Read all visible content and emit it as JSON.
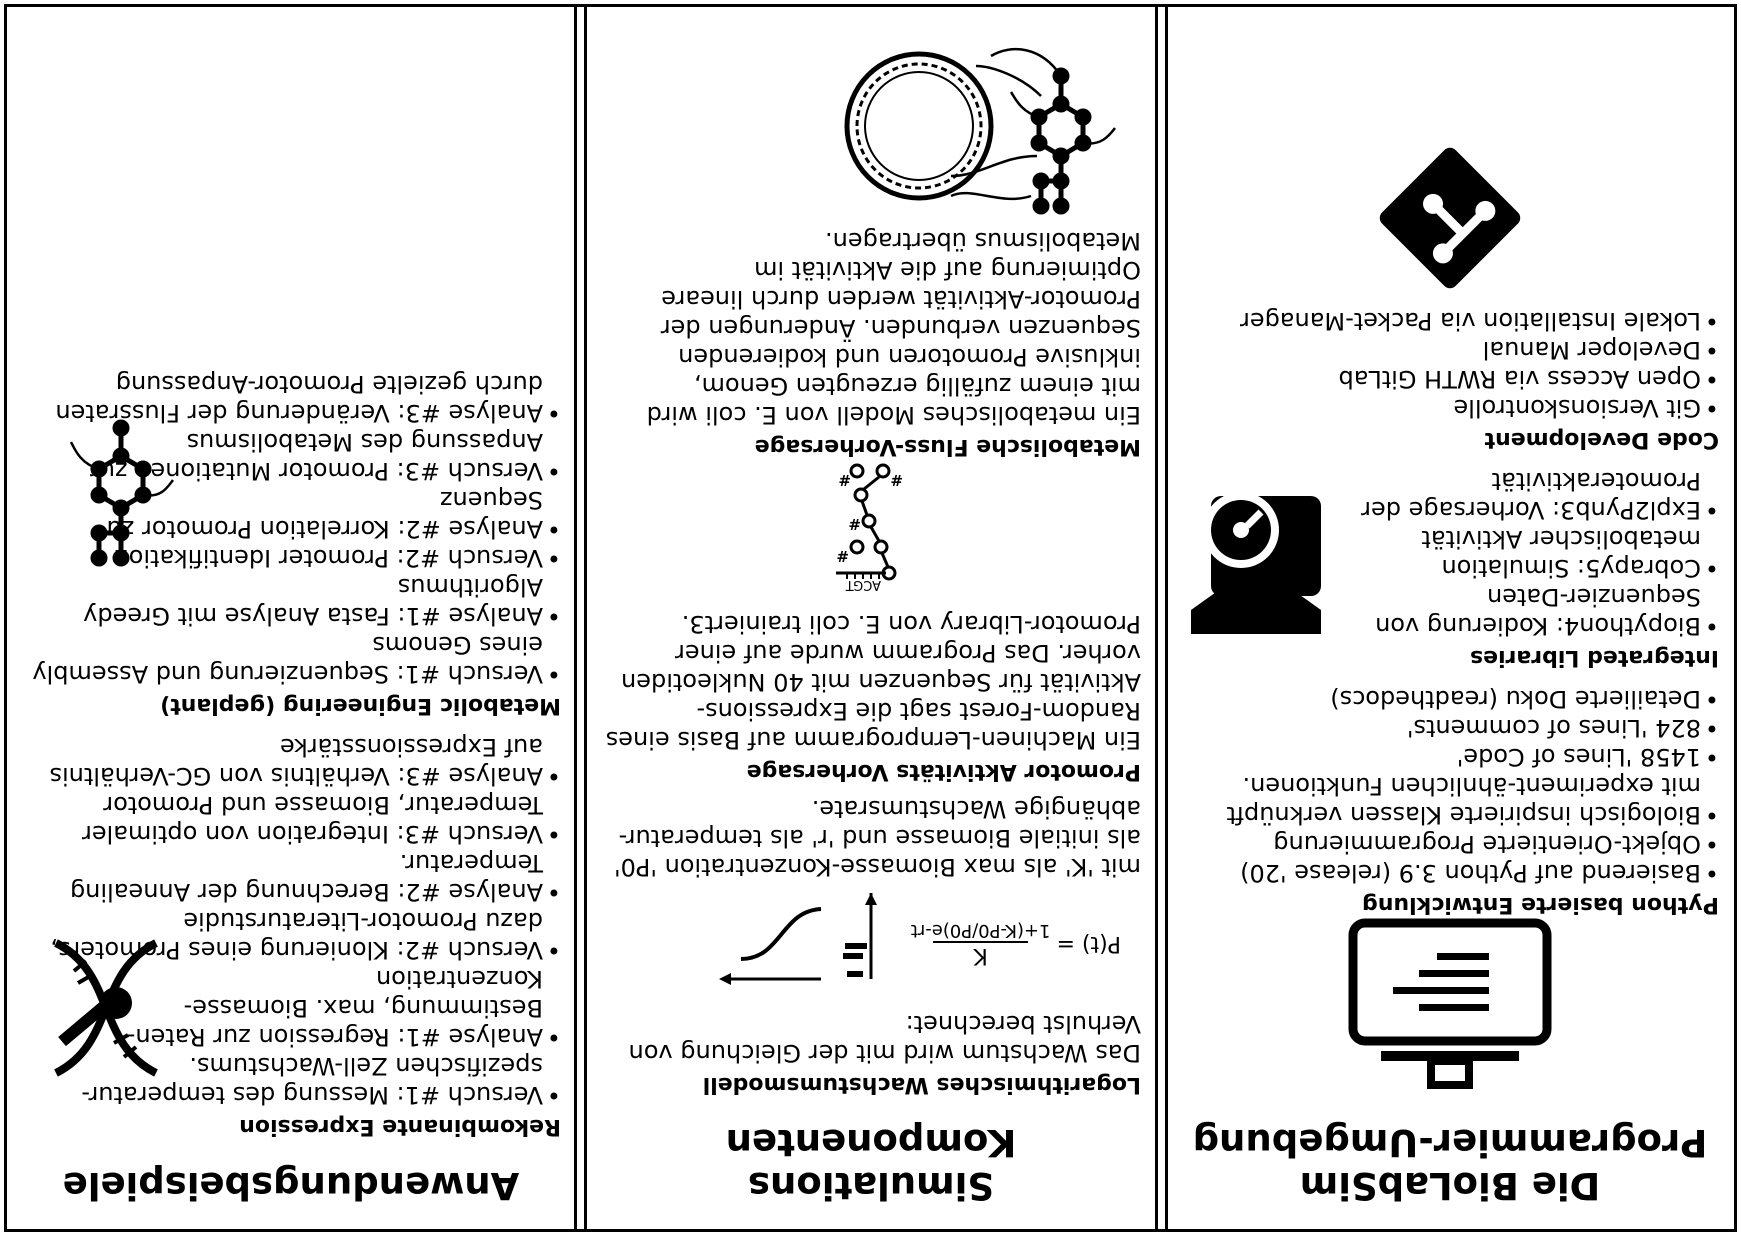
{
  "left": {
    "title": "Die BioLabSim Programmier-Umgebung",
    "sections": [
      {
        "heading": "Python basierte Entwicklung",
        "items": [
          "Basierend auf Python 3.9 (release '20)",
          "Objekt-Orientierte Programmierung",
          "Biologisch inspirierte Klassen verknüpft mit experiment-ähnlichen Funktionen.",
          "1458 'Lines of Code'",
          "824 'Lines of comments'",
          "Detailierte Doku (readthedocs)"
        ]
      },
      {
        "heading": "Integrated Libraries",
        "items": [
          "Biopython4: Kodierung von Sequenzier-Daten",
          "Cobrapy5: Simulation metabolischer Aktivität",
          "Expl2Pynb3: Vorhersage der Promoteraktivität"
        ]
      },
      {
        "heading": "Code Development",
        "items": [
          "Git Versionskontrolle",
          "Open Access via RWTH GitLab",
          "Developer Manual",
          "Lokale Installation via Packet-Manager"
        ]
      }
    ]
  },
  "middle": {
    "title": "Simulations Komponenten",
    "s1_heading": "Logarithmisches Wachstumsmodell",
    "s1_text1": "Das Wachstum wird mit der Gleichung von Verhulst berechnet:",
    "formula_lhs": "P(t) = ",
    "formula_num": "K",
    "formula_den": "1+(K-P0/P0)e-rt",
    "s1_text2": "mit 'K' als max Biomasse-Konzentration 'P0' als initiale Biomasse und 'r' als temperatur-abhängige Wachstumsrate.",
    "s2_heading": "Promotor Aktivitäts Vorhersage",
    "s2_text": "Ein Machinen-Lernprogramm auf Basis eines Random-Forest sagt die Expressions-Aktivität für Sequenzen mit 40 Nukleotiden vorher. Das Programm wurde auf einer Promotor-Library von E. coli trainiert3.",
    "dna_label": "ACGT",
    "s3_heading": "Metabolische Fluss-Vorhersage",
    "s3_text": "Ein metabolisches Modell von E. coli wird mit einem zufällig erzeugten Genom, inklusive Promotoren und kodierenden Sequenzen verbunden. Änderungen der Promotor-Aktivität werden durch lineare Optimierung auf die Aktivität im Metabolismus übertragen."
  },
  "right": {
    "title": "Anwendungsbeispiele",
    "sections": [
      {
        "heading": "Rekombinante Expression",
        "items": [
          "Versuch #1: Messung des temperatur-spezifischen Zell-Wachstums.",
          "Analyse #1: Regression zur Raten-Bestimmung, max. Biomasse-Konzentration",
          "Versuch #2: Klonierung eines Promoters, dazu Promotor-Literaturstudie",
          "Analyse #2: Berechnung der Annealing Temperatur.",
          "Versuch #3: Integration von optimaler Temperatur, Biomasse und Promotor",
          "Analyse #3: Verhältnis von GC-Verhältnis auf Expressionsstärke"
        ]
      },
      {
        "heading": "Metabolic Engineering (geplant)",
        "items": [
          "Versuch #1: Sequenzierung und Assembly eines Genoms",
          "Analyse #1: Fasta Analyse mit Greedy Algorithmus",
          "Versuch #2: Promoter Identifikation",
          "Analyse #2: Korrelation Promotor zu Sequenz",
          "Versuch #3: Promotor Mutationen zur Anpassung des Metabolismus",
          "Analyse #3: Veränderung der Flussraten durch gezielte Promotor-Anpassung"
        ]
      }
    ]
  }
}
